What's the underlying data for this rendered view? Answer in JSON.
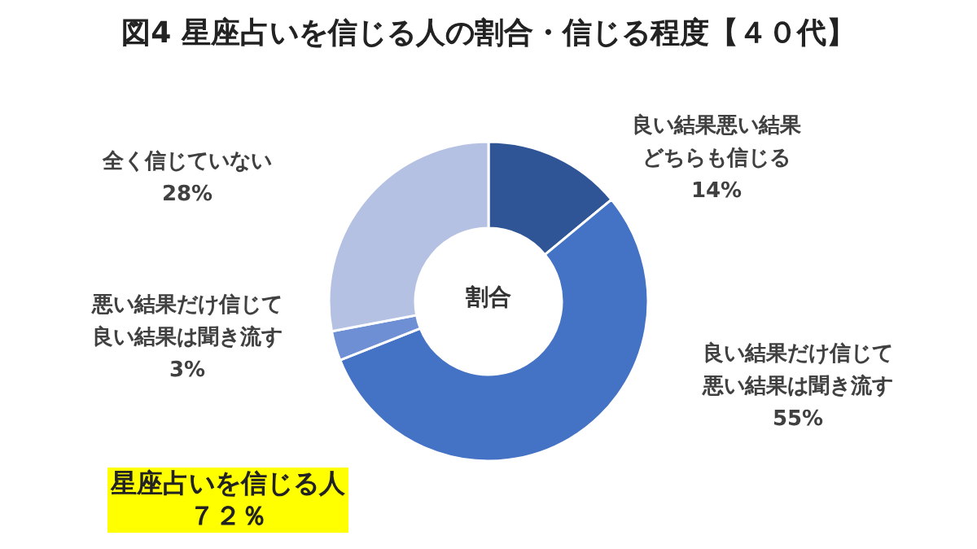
{
  "chart_data": {
    "type": "donut",
    "title": "図4 星座占いを信じる人の割合・信じる程度【４０代】",
    "categories": [
      "良い結果悪い結果どちらも信じる",
      "良い結果だけ信じて悪い結果は聞き流す",
      "悪い結果だけ信じて良い結果は聞き流す",
      "全く信じていない"
    ],
    "values": [
      14,
      55,
      3,
      28
    ],
    "colors": [
      "#2f5597",
      "#4472c4",
      "#6e8fd4",
      "#b4c1e2"
    ],
    "value_labels": [
      "14%",
      "55%",
      "3%",
      "28%"
    ],
    "annotations": [
      "割合",
      "星座占いを信じる人",
      "７２％"
    ]
  }
}
